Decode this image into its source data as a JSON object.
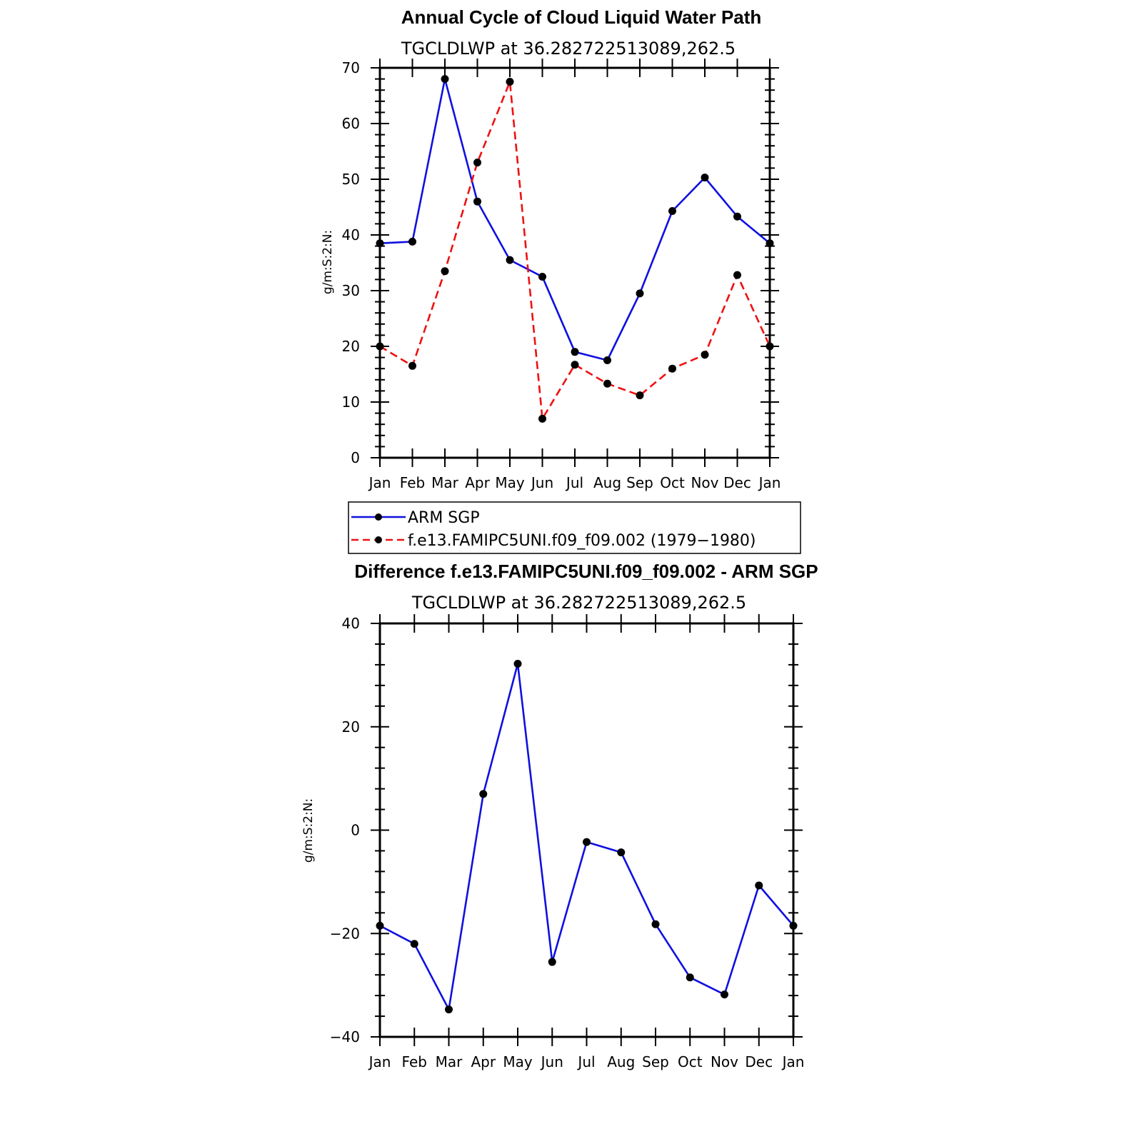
{
  "chart_data": [
    {
      "type": "line",
      "title": "Annual Cycle of Cloud Liquid Water Path",
      "subtitle": "TGCLDLWP  at  36.282722513089,262.5",
      "xlabel": "",
      "ylabel": "g/m:S:2:N:",
      "categories": [
        "Jan",
        "Feb",
        "Mar",
        "Apr",
        "May",
        "Jun",
        "Jul",
        "Aug",
        "Sep",
        "Oct",
        "Nov",
        "Dec",
        "Jan"
      ],
      "ylim": [
        0,
        70
      ],
      "yticks": [
        "0",
        "10",
        "20",
        "30",
        "40",
        "50",
        "60",
        "70"
      ],
      "series": [
        {
          "name": "ARM  SGP",
          "color": "#1010e0",
          "dash": "solid",
          "values": [
            38.5,
            38.8,
            68.0,
            46.0,
            35.5,
            32.5,
            19.0,
            17.5,
            29.5,
            44.3,
            50.3,
            43.3,
            38.5
          ]
        },
        {
          "name": "f.e13.FAMIPC5UNI.f09_f09.002  (1979−1980)",
          "color": "#ee1111",
          "dash": "dashed",
          "values": [
            20.0,
            16.5,
            33.5,
            53.0,
            67.5,
            7.0,
            16.7,
            13.3,
            11.2,
            16.0,
            18.5,
            32.8,
            20.0
          ]
        }
      ],
      "legend_position": "below"
    },
    {
      "type": "line",
      "title": "Difference f.e13.FAMIPC5UNI.f09_f09.002 - ARM SGP",
      "subtitle": "TGCLDLWP  at  36.282722513089,262.5",
      "xlabel": "",
      "ylabel": "g/m:S:2:N:",
      "categories": [
        "Jan",
        "Feb",
        "Mar",
        "Apr",
        "May",
        "Jun",
        "Jul",
        "Aug",
        "Sep",
        "Oct",
        "Nov",
        "Dec",
        "Jan"
      ],
      "ylim": [
        -40,
        40
      ],
      "yticks": [
        "−40",
        "−20",
        "0",
        "20",
        "40"
      ],
      "series": [
        {
          "name": "Difference",
          "color": "#1010e0",
          "dash": "solid",
          "values": [
            -18.5,
            -22.0,
            -34.7,
            7.0,
            32.2,
            -25.5,
            -2.3,
            -4.3,
            -18.2,
            -28.5,
            -31.8,
            -10.7,
            -18.5
          ]
        }
      ]
    }
  ]
}
